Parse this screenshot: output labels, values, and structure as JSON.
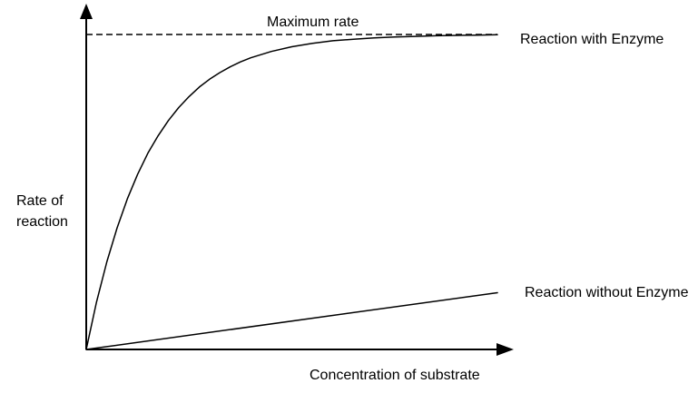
{
  "chart_data": {
    "type": "line",
    "title": "",
    "xlabel": "Concentration of substrate",
    "ylabel": "Rate of\nreaction",
    "axes": {
      "x_range": [
        0,
        1
      ],
      "y_range": [
        0,
        1
      ],
      "x_ticks": [],
      "y_ticks": [],
      "grid": false,
      "arrowheads": true
    },
    "annotations": {
      "max_rate": "Maximum rate"
    },
    "max_rate_line": {
      "value": 1.0,
      "style": "dashed"
    },
    "line_color": "#000000",
    "series": [
      {
        "name": "Reaction with Enzyme",
        "x": [
          0,
          0.025,
          0.05,
          0.075,
          0.1,
          0.125,
          0.15,
          0.175,
          0.2,
          0.225,
          0.25,
          0.275,
          0.3,
          0.325,
          0.35,
          0.375,
          0.4,
          0.45,
          0.5,
          0.55,
          0.6,
          0.65,
          0.7,
          0.75,
          0.8,
          0.85,
          0.9,
          0.95,
          1.0
        ],
        "y": [
          0,
          0.15,
          0.278,
          0.386,
          0.478,
          0.556,
          0.623,
          0.679,
          0.727,
          0.768,
          0.803,
          0.833,
          0.858,
          0.879,
          0.897,
          0.913,
          0.926,
          0.946,
          0.961,
          0.972,
          0.98,
          0.985,
          0.989,
          0.992,
          0.994,
          0.996,
          0.997,
          0.998,
          0.999
        ]
      },
      {
        "name": "Reaction without Enzyme",
        "x": [
          0,
          1.0
        ],
        "y": [
          0,
          0.18
        ]
      }
    ]
  }
}
